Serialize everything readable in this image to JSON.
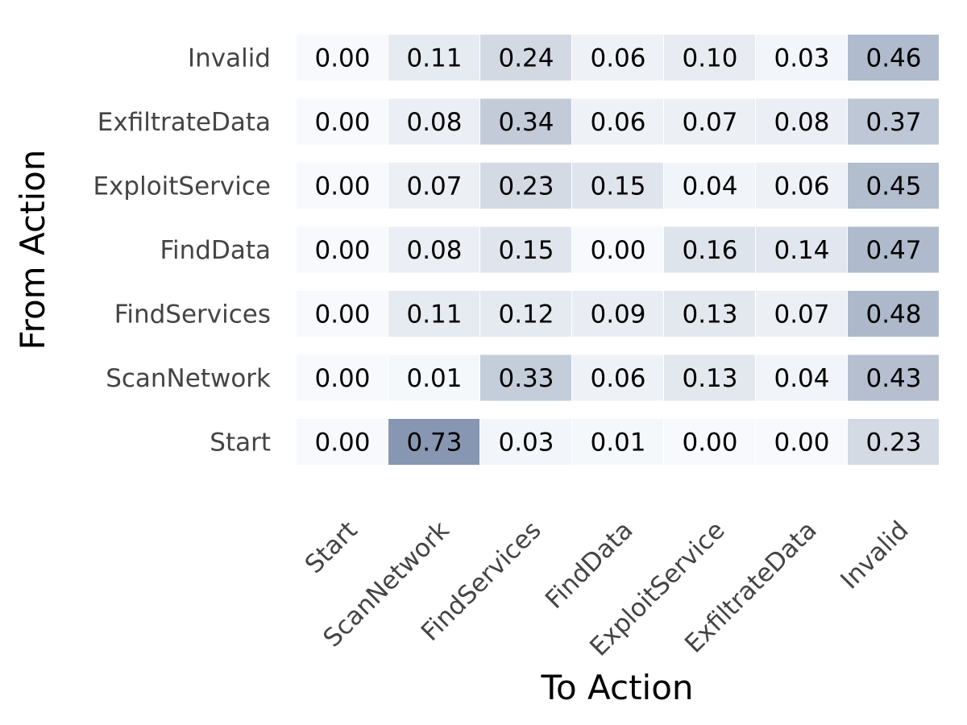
{
  "chart_data": {
    "type": "heatmap",
    "title": "",
    "xlabel": "To Action",
    "ylabel": "From Action",
    "x_categories": [
      "Start",
      "ScanNetwork",
      "FindServices",
      "FindData",
      "ExploitService",
      "ExfiltrateData",
      "Invalid"
    ],
    "y_categories": [
      "Invalid",
      "ExfiltrateData",
      "ExploitService",
      "FindData",
      "FindServices",
      "ScanNetwork",
      "Start"
    ],
    "values": [
      [
        0.0,
        0.11,
        0.24,
        0.06,
        0.1,
        0.03,
        0.46
      ],
      [
        0.0,
        0.08,
        0.34,
        0.06,
        0.07,
        0.08,
        0.37
      ],
      [
        0.0,
        0.07,
        0.23,
        0.15,
        0.04,
        0.06,
        0.45
      ],
      [
        0.0,
        0.08,
        0.15,
        0.0,
        0.16,
        0.14,
        0.47
      ],
      [
        0.0,
        0.11,
        0.12,
        0.09,
        0.13,
        0.07,
        0.48
      ],
      [
        0.0,
        0.01,
        0.33,
        0.06,
        0.13,
        0.04,
        0.43
      ],
      [
        0.0,
        0.73,
        0.03,
        0.01,
        0.0,
        0.0,
        0.23
      ]
    ],
    "value_format": "0.00",
    "color_range": [
      0.0,
      0.73
    ],
    "colors": {
      "low": "#f7f9fc",
      "high": "#8797b1",
      "text": "#000000",
      "tick_text": "#444444"
    },
    "grid": false,
    "legend": "none"
  }
}
